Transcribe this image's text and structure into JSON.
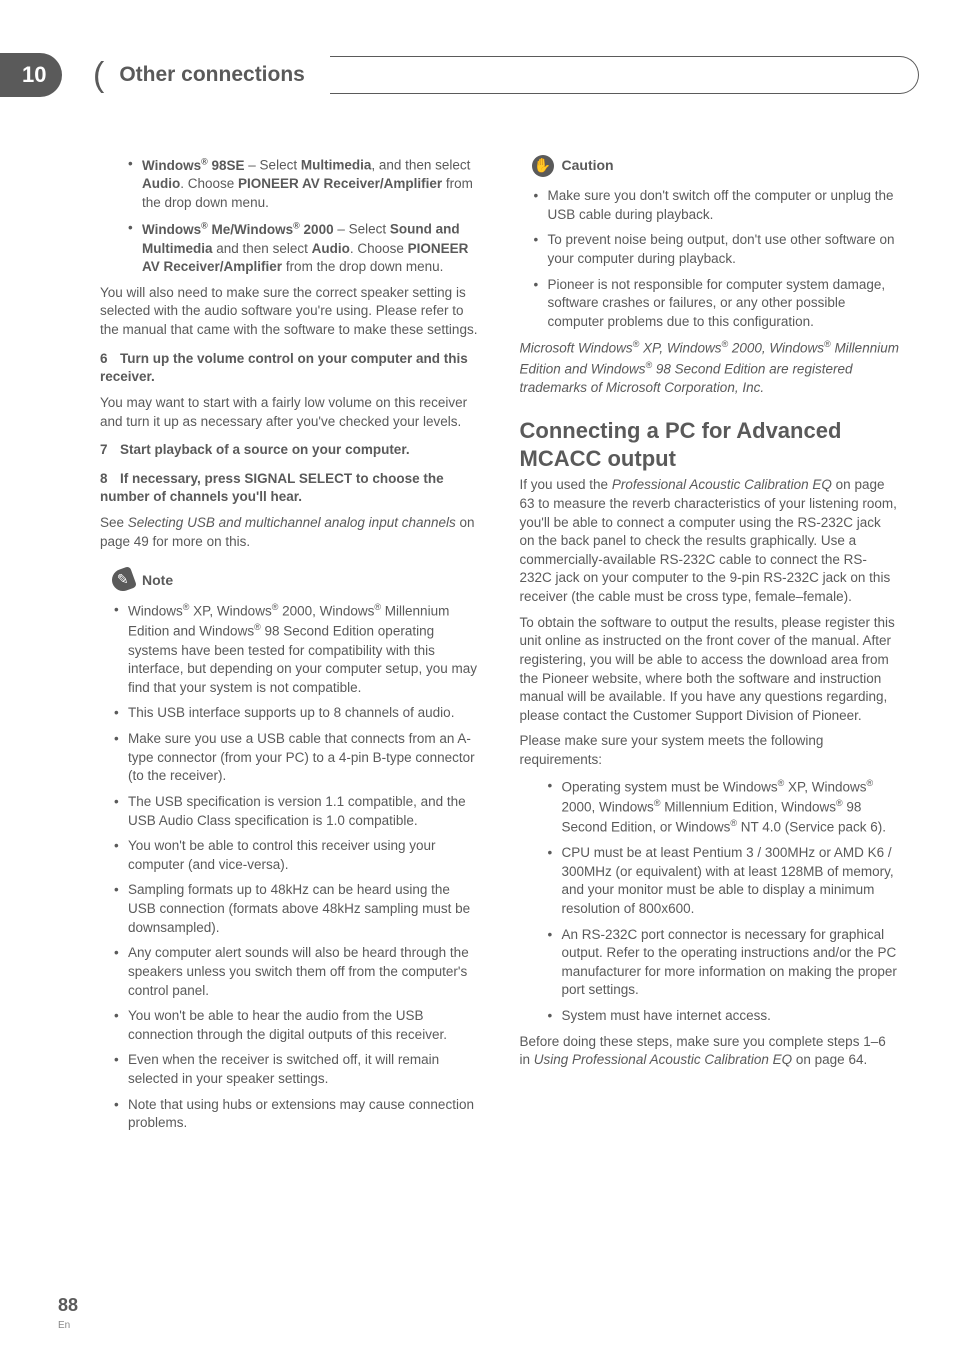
{
  "chapter": {
    "number": "10",
    "title": "Other connections"
  },
  "page": {
    "number": "88",
    "lang": "En"
  },
  "left": {
    "b1a": "Windows",
    "b1reg": "®",
    "b1b": " 98SE",
    "b1c": " – Select ",
    "b1d": "Multimedia",
    "b1e": ", and then select ",
    "b1f": "Audio",
    "b1g": ". Choose ",
    "b1h": "PIONEER AV Receiver/Amplifier",
    "b1i": " from the drop down menu.",
    "b2a": "Windows",
    "b2b": " Me/Windows",
    "b2c": " 2000",
    "b2d": " – Select ",
    "b2e": "Sound and Multimedia",
    "b2f": " and then select ",
    "b2g": "Audio",
    "b2h": ". Choose ",
    "b2i": "PIONEER AV Receiver/Amplifier",
    "b2j": " from the drop down menu.",
    "p1": "You will also need to make sure the correct speaker setting is selected with the audio software you're using. Please refer to the manual that came with the software to make these settings.",
    "s6n": "6",
    "s6": "Turn up the volume control on your computer and this receiver.",
    "p2": "You may want to start with a fairly low volume on this receiver and turn it up as necessary after you've checked your levels.",
    "s7n": "7",
    "s7": "Start playback of a source on your computer.",
    "s8n": "8",
    "s8": "If necessary, press SIGNAL SELECT to choose the number of channels you'll hear.",
    "p3a": "See ",
    "p3b": "Selecting USB and multichannel analog input channels",
    "p3c": " on page 49 for more on this.",
    "noteLabel": "Note",
    "n1a": "Windows",
    "n1b": " XP, Windows",
    "n1c": " 2000, Windows",
    "n1d": " Millennium Edition and Windows",
    "n1e": " 98 Second Edition operating systems have been tested for compatibility with this interface, but depending on your computer setup, you may find that your system is not compatible.",
    "n2": "This USB interface supports up to 8 channels of audio.",
    "n3": "Make sure you use a USB cable that connects from an A-type connector (from your PC) to a 4-pin B-type connector (to the receiver).",
    "n4": "The USB specification is version 1.1 compatible, and the USB Audio Class specification is 1.0 compatible.",
    "n5": "You won't be able to control this receiver using your computer (and vice-versa).",
    "n6": "Sampling formats up to 48kHz can be heard using the USB connection (formats above 48kHz sampling must be downsampled).",
    "n7": "Any computer alert sounds will also be heard through the speakers unless you switch them off from the computer's control panel.",
    "n8": "You won't be able to hear the audio from the USB connection through the digital outputs of this receiver.",
    "n9": "Even when the receiver is switched off, it will remain selected in your speaker settings.",
    "n10": "Note that using hubs or extensions may cause connection problems."
  },
  "right": {
    "cautionLabel": "Caution",
    "c1": "Make sure you don't switch off the computer or unplug the USB cable during playback.",
    "c2": "To prevent noise being output, don't use other software on your computer during playback.",
    "c3": "Pioneer is not responsible for computer system damage, software crashes or failures, or any other possible computer problems due to this configuration.",
    "tm1": "Microsoft Windows",
    "tm2": " XP, Windows",
    "tm3": " 2000, Windows",
    "tm4": " Millennium Edition and Windows",
    "tm5": " 98 Second Edition are registered trademarks of Microsoft Corporation, Inc.",
    "h2": "Connecting a PC for Advanced MCACC output",
    "p1a": "If you used the ",
    "p1b": "Professional Acoustic Calibration EQ",
    "p1c": " on page 63 to measure the reverb characteristics of your listening room, you'll be able to connect a computer using the RS-232C jack on the back panel to check the results graphically. Use a commercially-available RS-232C cable to connect the RS-232C jack on your computer to the 9-pin RS-232C jack on this receiver (the cable must be cross type, female–female).",
    "p2": "To obtain the software to output the results, please register this unit online as instructed on the front cover of the manual. After registering, you will be able to access the download area from the Pioneer website, where both the software and instruction manual will be available. If you have any questions regarding, please contact the Customer Support Division of Pioneer.",
    "p3": "Please make sure your system meets the following requirements:",
    "r1a": "Operating system must be Windows",
    "r1b": " XP, Windows",
    "r1c": " 2000, Windows",
    "r1d": " Millennium Edition, Windows",
    "r1e": " 98 Second Edition, or Windows",
    "r1f": " NT 4.0 (Service pack 6).",
    "r2": "CPU must be at least Pentium 3 / 300MHz or AMD K6 / 300MHz (or equivalent) with at least 128MB of memory, and your monitor must be able to display a minimum resolution of 800x600.",
    "r3": "An RS-232C port connector is necessary for graphical output. Refer to the operating instructions and/or the PC manufacturer for more information on making the proper port settings.",
    "r4": "System must have internet access.",
    "p4a": "Before doing these steps, make sure you complete steps 1–6 in ",
    "p4b": "Using Professional Acoustic Calibration EQ",
    "p4c": " on page 64."
  }
}
